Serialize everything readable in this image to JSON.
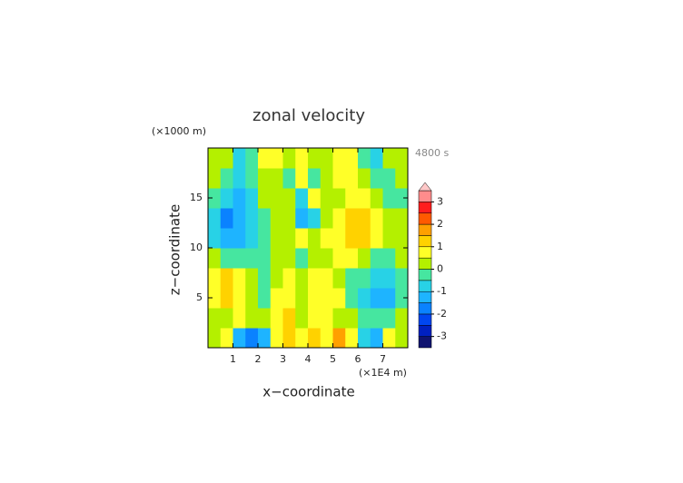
{
  "chart_data": {
    "type": "contour",
    "title": "zonal velocity",
    "y_unit": "(×1000 m)",
    "x_unit": "(×1E4 m)",
    "time_label": "4800 s",
    "xlabel": "x−coordinate",
    "ylabel": "z−coordinate",
    "xlim": [
      0,
      8
    ],
    "ylim": [
      0,
      20
    ],
    "xticks": [
      1,
      2,
      3,
      4,
      5,
      6,
      7
    ],
    "yticks": [
      5,
      10,
      15
    ],
    "x": [
      0.25,
      0.75,
      1.25,
      1.75,
      2.25,
      2.75,
      3.25,
      3.75,
      4.25,
      4.75,
      5.25,
      5.75,
      6.25,
      6.75,
      7.25,
      7.75
    ],
    "y": [
      1,
      3,
      5,
      7,
      9,
      11,
      13,
      15,
      17,
      19
    ],
    "z": [
      [
        0.3,
        0.5,
        -1.2,
        -1.6,
        -1.3,
        0.6,
        1.2,
        0.8,
        1.0,
        0.5,
        1.9,
        0.9,
        -0.8,
        -1.2,
        0.6,
        0.2
      ],
      [
        0.2,
        0.4,
        0.5,
        0.3,
        0.2,
        0.5,
        1.0,
        0.3,
        0.8,
        0.9,
        0.4,
        0.2,
        -0.2,
        -0.4,
        -0.2,
        0.1
      ],
      [
        0.8,
        1.4,
        0.9,
        0.3,
        -0.4,
        0.6,
        0.7,
        0.2,
        0.8,
        0.6,
        0.5,
        -0.4,
        -0.9,
        -1.5,
        -1.2,
        -0.3
      ],
      [
        0.9,
        1.0,
        0.6,
        0.2,
        -0.5,
        0.4,
        0.6,
        0.1,
        0.6,
        0.5,
        0.4,
        -0.3,
        -0.4,
        -0.8,
        -0.6,
        -0.2
      ],
      [
        0.2,
        -0.2,
        -0.4,
        -0.5,
        -0.2,
        0.3,
        0.4,
        -0.3,
        0.4,
        0.3,
        0.7,
        0.6,
        0.3,
        -0.2,
        -0.3,
        0.1
      ],
      [
        -0.8,
        -1.5,
        -1.2,
        -0.6,
        -0.5,
        0.1,
        0.4,
        0.5,
        0.4,
        0.6,
        0.6,
        1.0,
        1.1,
        0.7,
        0.2,
        0.0
      ],
      [
        -0.9,
        -1.6,
        -1.3,
        -0.7,
        -0.4,
        0.2,
        0.1,
        -1.5,
        -0.8,
        0.2,
        0.5,
        1.1,
        1.2,
        0.8,
        0.3,
        0.1
      ],
      [
        -0.4,
        -1.0,
        -1.2,
        -0.6,
        0.1,
        0.2,
        0.1,
        -0.8,
        0.5,
        0.2,
        0.4,
        0.9,
        0.8,
        0.3,
        -0.3,
        -0.2
      ],
      [
        0.1,
        -0.3,
        -0.8,
        -0.5,
        0.2,
        0.3,
        -0.3,
        0.6,
        -0.5,
        0.3,
        0.6,
        0.8,
        0.4,
        -0.3,
        -0.5,
        0.1
      ],
      [
        0.2,
        0.1,
        -0.6,
        -0.4,
        0.8,
        0.9,
        0.3,
        0.6,
        0.4,
        0.3,
        0.8,
        0.7,
        -0.2,
        -0.6,
        0.1,
        0.2
      ]
    ],
    "levels": [
      -3.5,
      -3,
      -2.5,
      -2,
      -1.5,
      -1,
      -0.5,
      0,
      0.5,
      1,
      1.5,
      2,
      2.5,
      3,
      3.5
    ],
    "colors": [
      "#101470",
      "#0020c0",
      "#0046f0",
      "#0a82ff",
      "#1eb4ff",
      "#28d2e6",
      "#46e6a0",
      "#b4f000",
      "#ffff28",
      "#ffd200",
      "#ffa000",
      "#ff5a00",
      "#ff1e1e",
      "#ff8c8c"
    ],
    "extend_color": "#ffc8c8",
    "cticks": [
      -3,
      -2,
      -1,
      0,
      1,
      2,
      3
    ]
  }
}
